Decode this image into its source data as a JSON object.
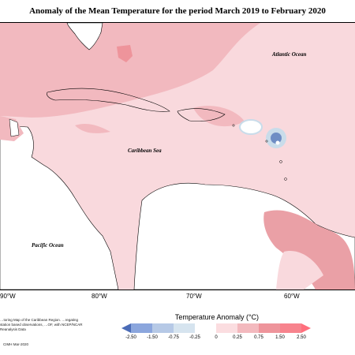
{
  "title": "Anomaly of the Mean Temperature for the period March 2019 to February 2020",
  "map": {
    "labels": {
      "atlantic": "Atlantic Ocean",
      "caribbean": "Caribbean Sea",
      "pacific": "Pacific Ocean"
    },
    "longitudes": [
      "90°W",
      "80°W",
      "70°W",
      "60°W"
    ],
    "colors": {
      "ocean_light": "#f9d9dd",
      "ocean_mid": "#f2b9bf",
      "land_warm": "#eaa0a6",
      "land": "#ffffff",
      "cool_core": "#6f8dc4",
      "cool_ring": "#c9dcea"
    }
  },
  "legend": {
    "title": "Temperature Anomaly (°C)",
    "ticks": [
      "-2.50",
      "-1.50",
      "-0.75",
      "-0.25",
      "0",
      "0.25",
      "0.75",
      "1.50",
      "2.50"
    ],
    "colors": [
      "#4b6cb7",
      "#8ba6dd",
      "#b6c9e6",
      "#d6e4ef",
      "#ffffff",
      "#fbdde0",
      "#f3b9be",
      "#ee949b",
      "#ff6f7d"
    ]
  },
  "footer": {
    "note": "…toring Map of the Caribbean Region. …regating station based observations, …OF, with NCEP/NCAR Reanalysis Data",
    "credit": "CIMH Mar-2020"
  }
}
